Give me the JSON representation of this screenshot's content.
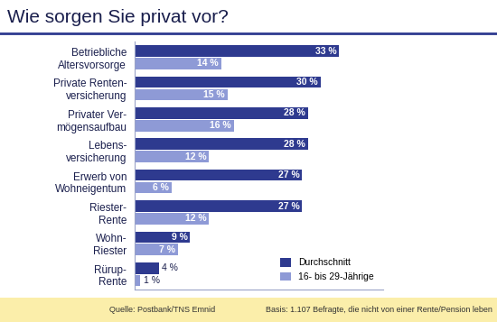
{
  "chart_data": {
    "type": "bar",
    "orientation": "horizontal",
    "title": "Wie sorgen Sie privat vor?",
    "categories": [
      "Betriebliche\nAltersvorsorge",
      "Private Renten-\nversicherung",
      "Privater Ver-\nmögensaufbau",
      "Lebens-\nversicherung",
      "Erwerb von\nWohneigentum",
      "Riester-\nRente",
      "Wohn-\nRiester",
      "Rürup-\nRente"
    ],
    "series": [
      {
        "name": "Durchschnitt",
        "color": "#2e3a8f",
        "values": [
          33,
          30,
          28,
          28,
          27,
          27,
          9,
          4
        ],
        "value_labels": [
          "33 %",
          "30 %",
          "28 %",
          "28 %",
          "27 %",
          "27 %",
          "9 %",
          "4 %"
        ]
      },
      {
        "name": "16- bis 29-Jährige",
        "color": "#8e9ad6",
        "values": [
          14,
          15,
          16,
          12,
          6,
          12,
          7,
          1
        ],
        "value_labels": [
          "14 %",
          "15 %",
          "16 %",
          "12 %",
          "6 %",
          "12 %",
          "7 %",
          "1 %"
        ]
      }
    ],
    "xlim": [
      0,
      40
    ],
    "xticks": [],
    "data_labels": true,
    "tick_labels": "y",
    "legend": "lower right",
    "grid": false,
    "source": "Quelle: Postbank/TNS Emnid",
    "note": "Basis: 1.107 Befragte, die nicht von einer Rente/Pension leben"
  }
}
